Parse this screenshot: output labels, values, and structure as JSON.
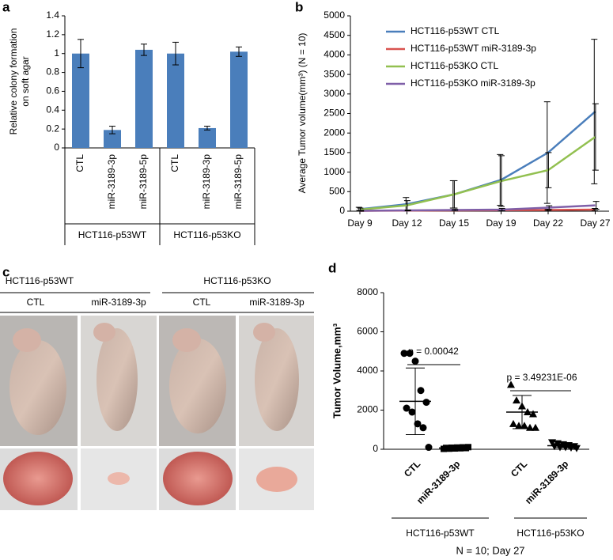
{
  "chart_data": [
    {
      "type": "bar",
      "panel": "a",
      "ylabel": [
        "Relative colony formation",
        "on soft agar"
      ],
      "categories": [
        "CTL",
        "miR-3189-3p",
        "miR-3189-5p",
        "CTL",
        "miR-3189-3p",
        "miR-3189-5p"
      ],
      "values": [
        1.0,
        0.19,
        1.04,
        1.0,
        0.21,
        1.02
      ],
      "errors": [
        0.15,
        0.04,
        0.06,
        0.12,
        0.02,
        0.05
      ],
      "groups": [
        "HCT116-p53WT",
        "HCT116-p53KO"
      ],
      "color": "#4a7ebb",
      "ylim": [
        0,
        1.4
      ],
      "yticks": [
        0,
        0.2,
        0.4,
        0.6,
        0.8,
        1,
        1.2,
        1.4
      ]
    },
    {
      "type": "line",
      "panel": "b",
      "ylabel": "Average Tumor volume(mm³) (N = 10)",
      "categories": [
        "Day 9",
        "Day 12",
        "Day 15",
        "Day 19",
        "Day 22",
        "Day 27"
      ],
      "series": [
        {
          "name": "HCT116-p53WT CTL",
          "color": "#4a7ebb",
          "values": [
            50,
            180,
            430,
            800,
            1500,
            2550
          ],
          "errors": [
            50,
            170,
            350,
            650,
            1300,
            1850
          ]
        },
        {
          "name": "HCT116-p53WT miR-3189-3p",
          "color": "#d9534f",
          "values": [
            10,
            15,
            20,
            25,
            30,
            40
          ],
          "errors": [
            10,
            10,
            10,
            10,
            20,
            30
          ]
        },
        {
          "name": "HCT116-p53KO CTL",
          "color": "#92c050",
          "values": [
            40,
            150,
            430,
            770,
            1050,
            1900
          ],
          "errors": [
            40,
            120,
            350,
            650,
            450,
            850
          ]
        },
        {
          "name": "HCT116-p53KO miR-3189-3p",
          "color": "#7f5fa8",
          "values": [
            10,
            20,
            30,
            40,
            90,
            150
          ],
          "errors": [
            10,
            10,
            20,
            30,
            50,
            100
          ]
        }
      ],
      "ylim": [
        0,
        5000
      ],
      "yticks": [
        0,
        500,
        1000,
        1500,
        2000,
        2500,
        3000,
        3500,
        4000,
        4500,
        5000
      ]
    },
    {
      "type": "dot",
      "panel": "d",
      "ylabel": "Tumor Volume,mm³",
      "categories": [
        "CTL",
        "miR-3189-3p",
        "CTL",
        "miR-3189-3p"
      ],
      "values": [
        [
          4900,
          4900,
          4500,
          3000,
          2400,
          2100,
          1900,
          1300,
          1100,
          100
        ],
        [
          20,
          30,
          40,
          50,
          60,
          70,
          80,
          90,
          100,
          110
        ],
        [
          3300,
          2500,
          2200,
          1900,
          1800,
          1300,
          1200,
          1200,
          1100,
          1100
        ],
        [
          350,
          300,
          250,
          200,
          150,
          150,
          100,
          100,
          80,
          50
        ]
      ],
      "means": [
        2450,
        65,
        1900,
        180
      ],
      "sds": [
        1700,
        30,
        850,
        100
      ],
      "markers": [
        "circle",
        "square",
        "triangle",
        "inverted-triangle"
      ],
      "annotations": [
        "p = 0.00042",
        "p = 3.49231E-06"
      ],
      "groups": [
        "HCT116-p53WT",
        "HCT116-p53KO"
      ],
      "footnote": "N = 10; Day 27",
      "ylim": [
        0,
        8000
      ],
      "yticks": [
        0,
        2000,
        4000,
        6000,
        8000
      ]
    }
  ],
  "photo_panel": {
    "panel": "c",
    "groups": [
      "HCT116-p53WT",
      "HCT116-p53KO"
    ],
    "columns": [
      "CTL",
      "miR-3189-3p",
      "CTL",
      "miR-3189-3p"
    ]
  }
}
